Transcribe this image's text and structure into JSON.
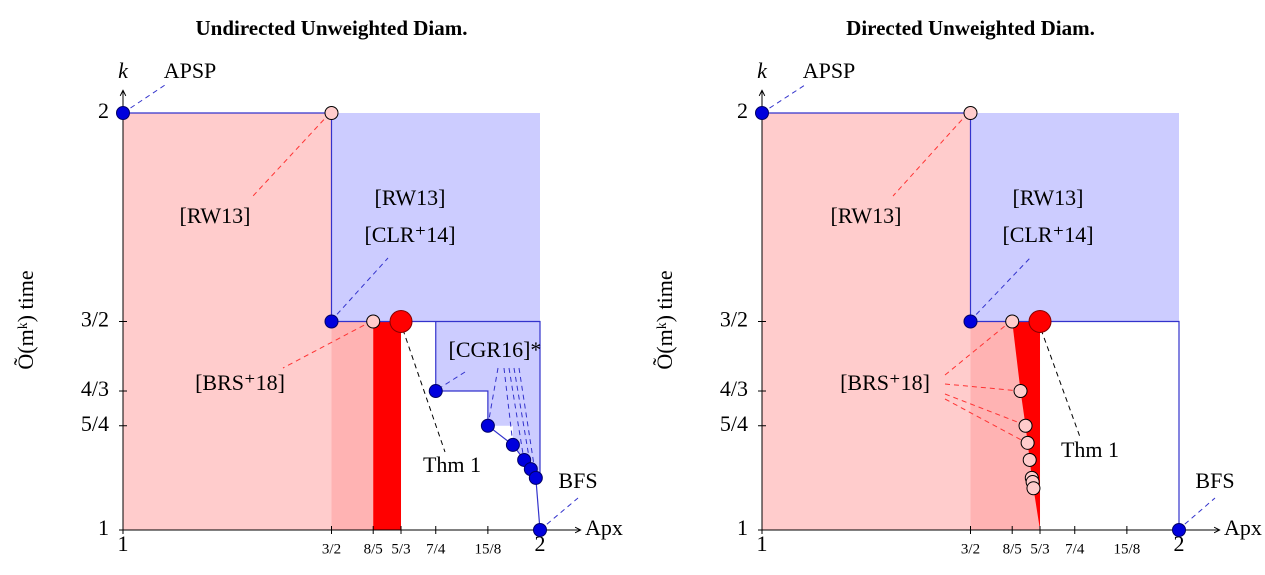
{
  "chart_data": [
    {
      "type": "region",
      "title": "Undirected Unweighted Diam.",
      "xlabel": "Apx",
      "ylabel": "Õ(mᵏ) time",
      "klabel": "k",
      "xlim": [
        1,
        2
      ],
      "ylim": [
        1,
        2
      ],
      "xticks": [
        1,
        {
          "value": 1.5,
          "label": "3/2"
        },
        {
          "value": 1.6,
          "label": "8/5"
        },
        {
          "value": 1.6667,
          "label": "5/3"
        },
        {
          "value": 1.75,
          "label": "7/4"
        },
        {
          "value": 1.875,
          "label": "15/8"
        },
        2
      ],
      "yticks": [
        1,
        {
          "value": 1.25,
          "label": "5/4"
        },
        {
          "value": 1.3333,
          "label": "4/3"
        },
        {
          "value": 1.5,
          "label": "3/2"
        },
        2
      ],
      "regions": [
        {
          "color": "#ffcccc",
          "x": [
            1,
            1.5,
            1.5,
            1
          ],
          "y": [
            1,
            1,
            2,
            2
          ]
        },
        {
          "color": "#ffb3b3",
          "x": [
            1.5,
            1.6,
            1.6,
            1.5
          ],
          "y": [
            1,
            1,
            1.5,
            1.5
          ]
        },
        {
          "color": "#ff0000",
          "x": [
            1.6,
            1.6667,
            1.6667,
            1.6
          ],
          "y": [
            1,
            1,
            1.5,
            1.5
          ]
        },
        {
          "color": "#ccccff",
          "x": [
            1.5,
            2,
            2,
            1.5
          ],
          "y": [
            1.5,
            1.5,
            2,
            2
          ]
        },
        {
          "color": "#ccccff",
          "x": [
            1.75,
            2,
            2,
            1.99,
            1.978,
            1.962,
            1.935,
            1.935,
            1.875,
            1.875,
            1.75
          ],
          "y": [
            1.5,
            1.5,
            1.125,
            1.125,
            1.146,
            1.168,
            1.204,
            1.25,
            1.25,
            1.3333,
            1.3333
          ]
        }
      ],
      "lines": [
        {
          "color": "#3333cc",
          "x": [
            1,
            1.5,
            1.5,
            2,
            2
          ],
          "y": [
            2,
            2,
            1.5,
            1.5,
            1.125
          ]
        },
        {
          "color": "#3333cc",
          "x": [
            1.75,
            1.75,
            1.875,
            1.875,
            1.935,
            1.962,
            1.978,
            1.99,
            2
          ],
          "y": [
            1.5,
            1.3333,
            1.3333,
            1.25,
            1.204,
            1.168,
            1.146,
            1.125,
            1
          ]
        }
      ],
      "points": {
        "x": [
          1,
          1.5,
          1.5,
          1.6,
          1.6667,
          1.75,
          1.875,
          1.935,
          1.962,
          1.978,
          1.99,
          2
        ],
        "y": [
          2,
          2,
          1.5,
          1.5,
          1.5,
          1.3333,
          1.25,
          1.204,
          1.168,
          1.146,
          1.125,
          1
        ],
        "colors": [
          "#0000dd",
          "#ffcccc",
          "#0000dd",
          "#ffcccc",
          "#ff0000",
          "#0000dd",
          "#0000dd",
          "#0000dd",
          "#0000dd",
          "#0000dd",
          "#0000dd",
          "#0000dd"
        ]
      },
      "annotations": [
        "APSP",
        "[RW13]",
        "[RW13]",
        "[CLR⁺14]",
        "[BRS⁺18]",
        "Thm 1",
        "[CGR16]*",
        "BFS"
      ]
    },
    {
      "type": "region",
      "title": "Directed Unweighted Diam.",
      "xlabel": "Apx",
      "ylabel": "Õ(mᵏ) time",
      "klabel": "k",
      "xlim": [
        1,
        2
      ],
      "ylim": [
        1,
        2
      ],
      "xticks": [
        1,
        {
          "value": 1.5,
          "label": "3/2"
        },
        {
          "value": 1.6,
          "label": "8/5"
        },
        {
          "value": 1.6667,
          "label": "5/3"
        },
        {
          "value": 1.75,
          "label": "7/4"
        },
        {
          "value": 1.875,
          "label": "15/8"
        },
        2
      ],
      "yticks": [
        1,
        {
          "value": 1.25,
          "label": "5/4"
        },
        {
          "value": 1.3333,
          "label": "4/3"
        },
        {
          "value": 1.5,
          "label": "3/2"
        },
        2
      ],
      "regions": [
        {
          "color": "#ffcccc",
          "x": [
            1,
            1.5,
            1.5,
            1
          ],
          "y": [
            1,
            1,
            2,
            2
          ]
        },
        {
          "color": "#ffb3b3",
          "x": [
            1.5,
            1.6667,
            1.6,
            1.5
          ],
          "y": [
            1,
            1,
            1.5,
            1.5
          ]
        },
        {
          "color": "#ff0000",
          "x": [
            1.6,
            1.6667,
            1.6667,
            1.651,
            1.649,
            1.647,
            1.642,
            1.637,
            1.632,
            1.62
          ],
          "y": [
            1.5,
            1.5,
            1,
            1.1,
            1.115,
            1.125,
            1.168,
            1.209,
            1.25,
            1.3333
          ]
        },
        {
          "color": "#ccccff",
          "x": [
            1.5,
            2,
            2,
            1.5
          ],
          "y": [
            1.5,
            1.5,
            2,
            2
          ]
        }
      ],
      "lines": [
        {
          "color": "#3333cc",
          "x": [
            1,
            1.5,
            1.5,
            2,
            2
          ],
          "y": [
            2,
            2,
            1.5,
            1.5,
            1
          ]
        }
      ],
      "points": {
        "x": [
          1,
          1.5,
          1.5,
          1.6,
          1.6667,
          2,
          1.62,
          1.632,
          1.637,
          1.642,
          1.647,
          1.649,
          1.651
        ],
        "y": [
          2,
          2,
          1.5,
          1.5,
          1.5,
          1,
          1.3333,
          1.25,
          1.209,
          1.168,
          1.125,
          1.115,
          1.1
        ],
        "colors": [
          "#0000dd",
          "#ffcccc",
          "#0000dd",
          "#ffcccc",
          "#ff0000",
          "#0000dd",
          "#ffcccc",
          "#ffcccc",
          "#ffcccc",
          "#ffcccc",
          "#ffcccc",
          "#ffcccc",
          "#ffcccc"
        ]
      },
      "annotations": [
        "APSP",
        "[RW13]",
        "[RW13]",
        "[CLR⁺14]",
        "[BRS⁺18]",
        "Thm 1",
        "BFS"
      ]
    }
  ]
}
